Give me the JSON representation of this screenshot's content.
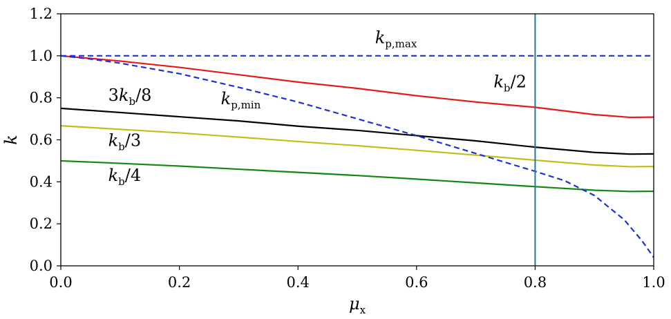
{
  "chart_data": {
    "type": "line",
    "xlabel": "μx",
    "ylabel": "k",
    "xlim": [
      0.0,
      1.0
    ],
    "ylim": [
      0.0,
      1.2
    ],
    "x_ticks": [
      "0.0",
      "0.2",
      "0.4",
      "0.6",
      "0.8",
      "1.0"
    ],
    "y_ticks": [
      "0.0",
      "0.2",
      "0.4",
      "0.6",
      "0.8",
      "1.0",
      "1.2"
    ],
    "grid": false,
    "series": [
      {
        "name": "kb/2",
        "color": "#e41a1a",
        "style": "solid",
        "points": [
          [
            0.0,
            1.0
          ],
          [
            0.1,
            0.975
          ],
          [
            0.2,
            0.945
          ],
          [
            0.3,
            0.91
          ],
          [
            0.4,
            0.875
          ],
          [
            0.5,
            0.845
          ],
          [
            0.6,
            0.81
          ],
          [
            0.7,
            0.78
          ],
          [
            0.8,
            0.755
          ],
          [
            0.9,
            0.72
          ],
          [
            0.96,
            0.707
          ],
          [
            1.0,
            0.708
          ]
        ]
      },
      {
        "name": "3kb/8",
        "color": "#000000",
        "style": "solid",
        "points": [
          [
            0.0,
            0.75
          ],
          [
            0.1,
            0.73
          ],
          [
            0.2,
            0.71
          ],
          [
            0.3,
            0.69
          ],
          [
            0.4,
            0.665
          ],
          [
            0.5,
            0.645
          ],
          [
            0.6,
            0.62
          ],
          [
            0.7,
            0.595
          ],
          [
            0.8,
            0.565
          ],
          [
            0.9,
            0.54
          ],
          [
            0.96,
            0.532
          ],
          [
            1.0,
            0.533
          ]
        ]
      },
      {
        "name": "kb/3",
        "color": "#bfbf18",
        "style": "solid",
        "points": [
          [
            0.0,
            0.667
          ],
          [
            0.1,
            0.65
          ],
          [
            0.2,
            0.633
          ],
          [
            0.3,
            0.613
          ],
          [
            0.4,
            0.592
          ],
          [
            0.5,
            0.572
          ],
          [
            0.6,
            0.55
          ],
          [
            0.7,
            0.527
          ],
          [
            0.8,
            0.503
          ],
          [
            0.9,
            0.48
          ],
          [
            0.96,
            0.472
          ],
          [
            1.0,
            0.473
          ]
        ]
      },
      {
        "name": "kb/4",
        "color": "#118811",
        "style": "solid",
        "points": [
          [
            0.0,
            0.5
          ],
          [
            0.1,
            0.488
          ],
          [
            0.2,
            0.475
          ],
          [
            0.3,
            0.46
          ],
          [
            0.4,
            0.445
          ],
          [
            0.5,
            0.43
          ],
          [
            0.6,
            0.413
          ],
          [
            0.7,
            0.395
          ],
          [
            0.8,
            0.377
          ],
          [
            0.9,
            0.36
          ],
          [
            0.96,
            0.354
          ],
          [
            1.0,
            0.355
          ]
        ]
      },
      {
        "name": "kp,max",
        "color": "#1f2fd6",
        "style": "dashed",
        "points": [
          [
            0.0,
            1.0
          ],
          [
            1.0,
            1.0
          ]
        ]
      },
      {
        "name": "kp,min",
        "color": "#1f2fd6",
        "style": "dashed",
        "points": [
          [
            0.0,
            1.0
          ],
          [
            0.05,
            0.985
          ],
          [
            0.1,
            0.965
          ],
          [
            0.2,
            0.915
          ],
          [
            0.3,
            0.85
          ],
          [
            0.4,
            0.78
          ],
          [
            0.5,
            0.7
          ],
          [
            0.6,
            0.62
          ],
          [
            0.7,
            0.535
          ],
          [
            0.8,
            0.45
          ],
          [
            0.85,
            0.405
          ],
          [
            0.9,
            0.335
          ],
          [
            0.95,
            0.22
          ],
          [
            0.98,
            0.12
          ],
          [
            1.0,
            0.04
          ]
        ]
      }
    ],
    "vlines": [
      {
        "x": 0.8,
        "color": "#1f77b4"
      }
    ],
    "annotations": [
      {
        "base": "k",
        "sub": "p,max",
        "suffix": "",
        "prefix": "",
        "x": 0.53,
        "y": 1.06
      },
      {
        "base": "k",
        "sub": "b",
        "suffix": "/2",
        "prefix": "",
        "x": 0.73,
        "y": 0.85
      },
      {
        "base": "k",
        "sub": "b",
        "suffix": "/8",
        "prefix": "3",
        "x": 0.08,
        "y": 0.785
      },
      {
        "base": "k",
        "sub": "p,min",
        "suffix": "",
        "prefix": "",
        "x": 0.27,
        "y": 0.77
      },
      {
        "base": "k",
        "sub": "b",
        "suffix": "/3",
        "prefix": "",
        "x": 0.08,
        "y": 0.57
      },
      {
        "base": "k",
        "sub": "b",
        "suffix": "/4",
        "prefix": "",
        "x": 0.08,
        "y": 0.405
      }
    ]
  }
}
